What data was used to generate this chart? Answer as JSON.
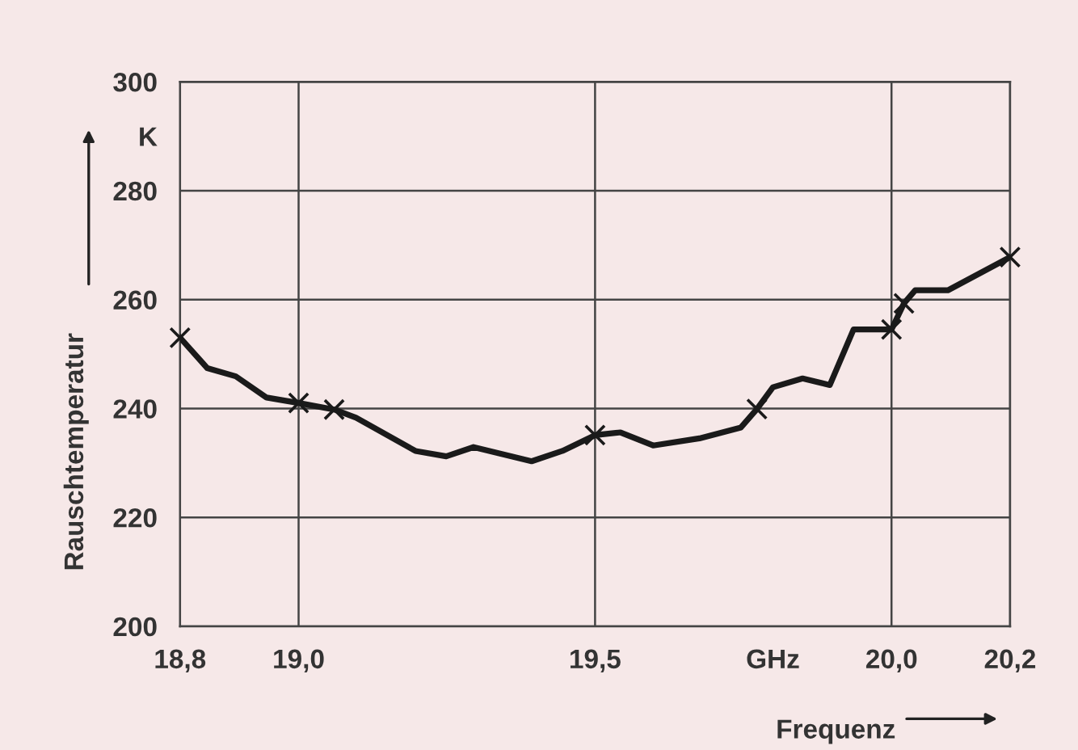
{
  "chart_data": {
    "type": "line",
    "xlabel": "Frequenz",
    "ylabel": "Rauschtemperatur",
    "series": [
      {
        "color": "#1a1a1a",
        "marker": "none",
        "x": [
          18.8,
          18.846,
          18.894,
          18.946,
          19.0,
          19.06,
          19.097,
          19.197,
          19.249,
          19.295,
          19.393,
          19.445,
          19.5,
          19.543,
          19.598,
          19.676,
          19.746,
          19.773,
          19.8,
          19.85,
          19.896,
          19.936,
          20.0,
          20.021,
          20.04,
          20.095,
          20.2
        ],
        "values": [
          253,
          247.4,
          245.9,
          242.0,
          241.0,
          239.8,
          238.3,
          232.2,
          231.2,
          232.9,
          230.3,
          232.2,
          235.1,
          235.6,
          233.2,
          234.5,
          236.5,
          239.9,
          243.9,
          245.5,
          244.3,
          254.5,
          254.5,
          259.3,
          261.7,
          261.7,
          267.8
        ]
      },
      {
        "type": "scatter",
        "color": "#1a1a1a",
        "marker": "cross",
        "x": [
          18.8,
          19.0,
          19.06,
          19.5,
          19.773,
          20.0,
          20.021,
          20.2
        ],
        "values": [
          253,
          241.0,
          239.8,
          235.1,
          239.9,
          254.5,
          259.3,
          267.8
        ]
      }
    ],
    "xlim": [
      18.8,
      20.2
    ],
    "xticks": [
      {
        "value": 18.8,
        "label": "18,8"
      },
      {
        "value": 19.0,
        "label": "19,0"
      },
      {
        "value": 19.5,
        "label": "19,5"
      },
      {
        "value": 19.8,
        "label": "GHz"
      },
      {
        "value": 20.0,
        "label": "20,0"
      },
      {
        "value": 20.2,
        "label": "20,2"
      }
    ],
    "ylim": [
      200,
      300
    ],
    "yticks": [
      200,
      220,
      240,
      260,
      280,
      {
        "value": 290,
        "label": "K"
      },
      300
    ],
    "grid": true,
    "legend": false
  }
}
